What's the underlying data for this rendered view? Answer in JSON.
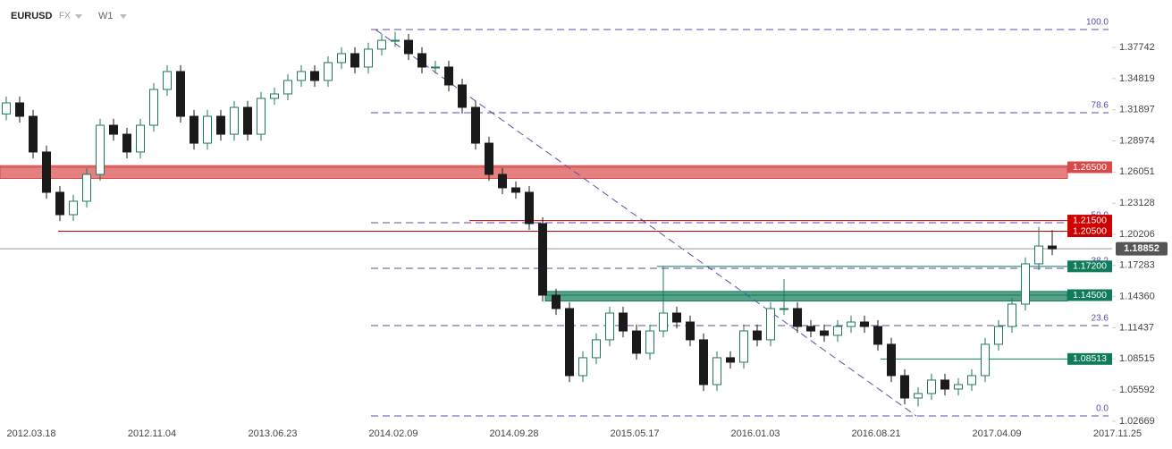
{
  "header": {
    "symbol": "EURUSD",
    "market": "FX",
    "timeframe": "W1"
  },
  "chart_data": {
    "type": "candlestick",
    "open": [
      1.315,
      1.3254,
      1.3128,
      1.2793,
      1.2415,
      1.2205,
      1.2331,
      1.2583,
      1.3044,
      1.296,
      1.2793,
      1.3044,
      1.338,
      1.3548,
      1.3128,
      1.2876,
      1.3128,
      1.296,
      1.3212,
      1.296,
      1.3296,
      1.3338,
      1.3464,
      1.3548,
      1.3464,
      1.3632,
      1.3716,
      1.359,
      1.3758,
      1.3841,
      1.3841,
      1.3716,
      1.359,
      1.359,
      1.3422,
      1.3212,
      1.2876,
      1.2583,
      1.2457,
      1.2415,
      1.2121,
      1.145,
      1.1324,
      1.0695,
      1.0863,
      1.1031,
      1.1282,
      1.1114,
      1.0905,
      1.1114,
      1.1282,
      1.1198,
      1.1031,
      1.0611,
      1.0863,
      1.0821,
      1.1114,
      1.1031,
      1.1324,
      1.1324,
      1.1156,
      1.1114,
      1.1073,
      1.1156,
      1.1198,
      1.1156,
      1.0989,
      1.0695,
      1.0485,
      1.0527,
      1.0653,
      1.0569,
      1.0611,
      1.0695,
      1.0989,
      1.1156,
      1.1366,
      1.1744,
      1.1911
    ],
    "high": [
      1.3314,
      1.3314,
      1.3188,
      1.2853,
      1.2475,
      1.2391,
      1.2643,
      1.3104,
      1.3104,
      1.302,
      1.3104,
      1.344,
      1.3608,
      1.3608,
      1.3188,
      1.3188,
      1.3188,
      1.3272,
      1.3272,
      1.3356,
      1.3398,
      1.3524,
      1.3608,
      1.3608,
      1.3692,
      1.3776,
      1.3776,
      1.3818,
      1.3901,
      1.392,
      1.3901,
      1.3776,
      1.365,
      1.365,
      1.3482,
      1.3272,
      1.2936,
      1.2643,
      1.2517,
      1.2475,
      1.2181,
      1.151,
      1.1384,
      1.0923,
      1.1091,
      1.1342,
      1.1342,
      1.1174,
      1.1174,
      1.1714,
      1.1342,
      1.1258,
      1.1091,
      1.0923,
      1.0923,
      1.1174,
      1.1174,
      1.1384,
      1.16,
      1.1384,
      1.1216,
      1.1174,
      1.1216,
      1.1258,
      1.1258,
      1.1216,
      1.1049,
      1.0755,
      1.0587,
      1.0713,
      1.0713,
      1.0671,
      1.0755,
      1.1049,
      1.1216,
      1.1426,
      1.1804,
      1.2092,
      1.206
    ],
    "low": [
      1.309,
      1.3068,
      1.2733,
      1.2355,
      1.2145,
      1.2145,
      1.2271,
      1.2523,
      1.29,
      1.2733,
      1.2733,
      1.2984,
      1.332,
      1.3068,
      1.2816,
      1.2816,
      1.29,
      1.29,
      1.29,
      1.29,
      1.3236,
      1.3278,
      1.3404,
      1.3404,
      1.3404,
      1.3572,
      1.353,
      1.353,
      1.3698,
      1.3781,
      1.3656,
      1.353,
      1.353,
      1.3362,
      1.3152,
      1.2816,
      1.2523,
      1.2397,
      1.2355,
      1.2061,
      1.139,
      1.1264,
      1.0635,
      1.0635,
      1.0803,
      1.0971,
      1.1054,
      1.0845,
      1.0845,
      1.1054,
      1.1138,
      1.0971,
      1.0551,
      1.0551,
      1.0761,
      1.0761,
      1.0971,
      1.0971,
      1.1264,
      1.1096,
      1.1054,
      1.1013,
      1.1013,
      1.1096,
      1.1096,
      1.0929,
      1.0635,
      1.0425,
      1.0405,
      1.0467,
      1.0509,
      1.0509,
      1.0551,
      1.0635,
      1.0929,
      1.1096,
      1.1306,
      1.1684,
      1.1825
    ],
    "close": [
      1.3254,
      1.3128,
      1.2793,
      1.2415,
      1.2205,
      1.2331,
      1.2583,
      1.3044,
      1.296,
      1.2793,
      1.3044,
      1.338,
      1.3548,
      1.3128,
      1.2876,
      1.3128,
      1.296,
      1.3212,
      1.296,
      1.3296,
      1.3338,
      1.3464,
      1.3548,
      1.3464,
      1.3632,
      1.3716,
      1.359,
      1.3758,
      1.3841,
      1.3841,
      1.3716,
      1.359,
      1.359,
      1.3422,
      1.3212,
      1.2876,
      1.2583,
      1.2457,
      1.2415,
      1.2121,
      1.145,
      1.1324,
      1.0695,
      1.0863,
      1.1031,
      1.1282,
      1.1114,
      1.0905,
      1.1114,
      1.1282,
      1.1198,
      1.1031,
      1.0611,
      1.0863,
      1.0821,
      1.1114,
      1.1031,
      1.1324,
      1.1324,
      1.1156,
      1.1114,
      1.1073,
      1.1156,
      1.1198,
      1.1156,
      1.0989,
      1.0695,
      1.0485,
      1.0527,
      1.0653,
      1.0569,
      1.0611,
      1.0695,
      1.0989,
      1.1156,
      1.1366,
      1.1744,
      1.1911,
      1.1885
    ],
    "up_color": "#1f7a5c",
    "down_color": "#1a1a1a",
    "x_labels": [
      "2012.03.18",
      "2012.11.04",
      "2013.06.23",
      "2014.02.09",
      "2014.09.28",
      "2015.05.17",
      "2016.01.03",
      "2016.08.21",
      "2017.04.09",
      "2017.11.25"
    ],
    "ylim": [
      1.0208,
      1.4152
    ],
    "yticks": [
      1.37742,
      1.34819,
      1.31897,
      1.28974,
      1.26051,
      1.23128,
      1.20206,
      1.17283,
      {
        "value": 1.1436,
        "label": "1.14360"
      },
      1.11437,
      1.08515,
      1.05592,
      1.02669
    ],
    "current_price": 1.18852,
    "levels": [
      {
        "value": 1.265,
        "label": "1.26500",
        "color": "#d84a4a",
        "zone": [
          1.2545,
          1.2665
        ]
      },
      {
        "value": 1.215,
        "label": "1.21500",
        "color": "#cc0000"
      },
      {
        "value": 1.205,
        "label": "1.20500",
        "color": "#cc0000"
      },
      {
        "value": 1.172,
        "label": "1.17200",
        "color": "#0f7b5a"
      },
      {
        "value": 1.145,
        "label": "1.14500",
        "color": "#0f7b5a",
        "zone": [
          1.1395,
          1.1485
        ]
      },
      {
        "value": 1.08513,
        "label": "1.08513",
        "color": "#0f7b5a"
      }
    ],
    "fibonacci": {
      "color": "#5b4ea8",
      "levels": [
        {
          "value": 1.3942,
          "label": "100.0"
        },
        {
          "value": 1.3162,
          "label": "78.6"
        },
        {
          "value": 1.213,
          "label": "50.0"
        },
        {
          "value": 1.1702,
          "label": "38.2"
        },
        {
          "value": 1.1165,
          "label": "23.6"
        },
        {
          "value": 1.0317,
          "label": "0.0"
        }
      ]
    }
  }
}
